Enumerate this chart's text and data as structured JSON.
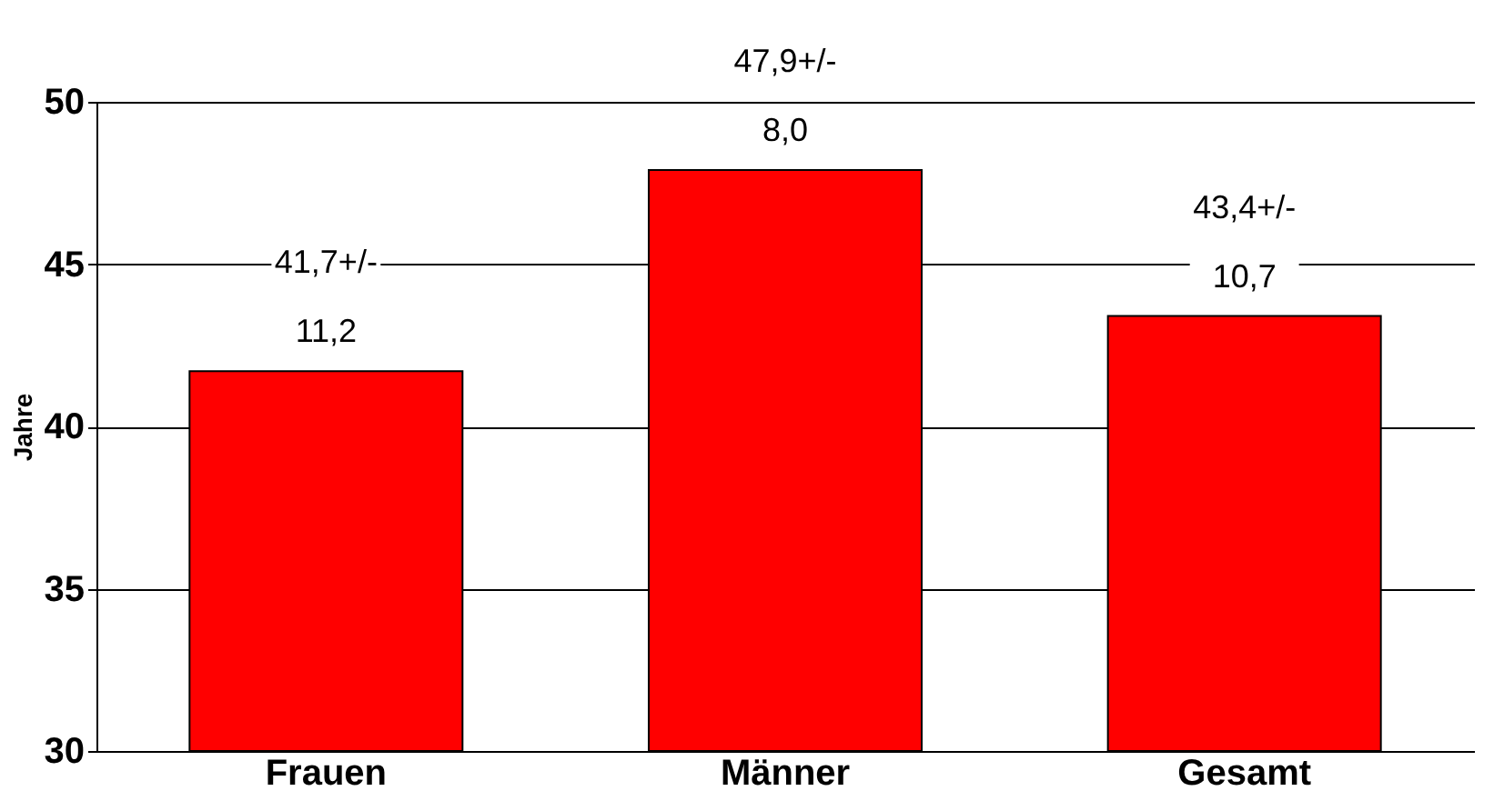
{
  "chart_data": {
    "type": "bar",
    "ylabel": "Jahre",
    "categories": [
      "Frauen",
      "Männer",
      "Gesamt"
    ],
    "values": [
      41.7,
      47.9,
      43.4
    ],
    "value_labels": [
      "41,7+/-\n11,2",
      "47,9+/-\n8,0",
      "43,4+/-\n10,7"
    ],
    "color": "#ff0000",
    "ylim": [
      30,
      50
    ],
    "yticks": [
      30,
      35,
      40,
      45,
      50
    ],
    "grid": "y"
  }
}
